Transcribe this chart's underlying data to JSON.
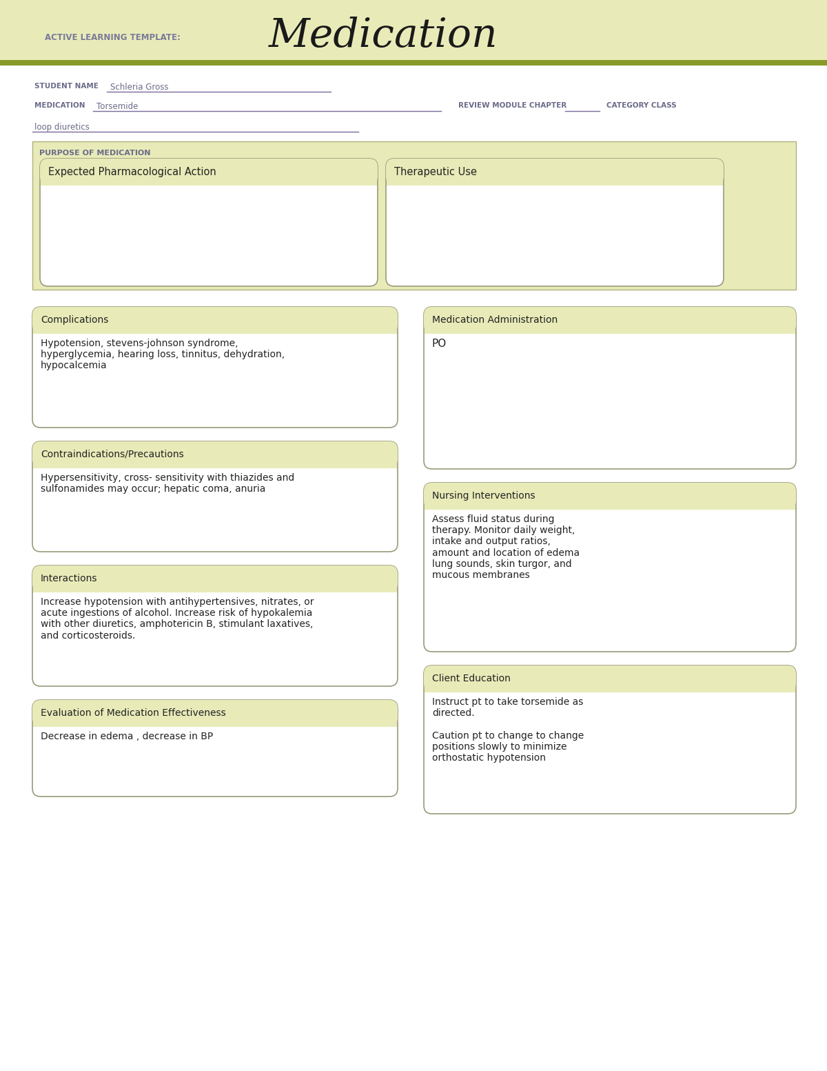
{
  "bg_color": "#ffffff",
  "header_bg": "#e8ebb8",
  "header_stripe_color": "#8a9a2a",
  "header_label": "ACTIVE LEARNING TEMPLATE:",
  "header_title": "Medication",
  "student_name_label": "STUDENT NAME",
  "student_name": "Schleria Gross",
  "medication_label": "MEDICATION",
  "medication": "Torsemide",
  "review_label": "REVIEW MODULE CHAPTER",
  "category_label": "CATEGORY CLASS",
  "category_value": "loop diuretics",
  "purpose_label": "PURPOSE OF MEDICATION",
  "box_bg_olive": "#e8ebb8",
  "box_bg_white": "#ffffff",
  "box_border": "#9a9a7a",
  "label_color": "#6a6a8a",
  "text_color": "#222222",
  "sections": {
    "expected_pharm": {
      "title": "Expected Pharmacological Action",
      "content": ""
    },
    "therapeutic_use": {
      "title": "Therapeutic Use",
      "content": ""
    },
    "complications": {
      "title": "Complications",
      "content": "Hypotension, stevens-johnson syndrome,\nhyperglycemia, hearing loss, tinnitus, dehydration,\nhypocalcemia"
    },
    "med_admin": {
      "title": "Medication Administration",
      "content": "PO"
    },
    "contraindications": {
      "title": "Contraindications/Precautions",
      "content": "Hypersensitivity, cross- sensitivity with thiazides and\nsulfonamides may occur; hepatic coma, anuria"
    },
    "nursing": {
      "title": "Nursing Interventions",
      "content": "Assess fluid status during\ntherapy. Monitor daily weight,\nintake and output ratios,\namount and location of edema\nlung sounds, skin turgor, and\nmucous membranes"
    },
    "interactions": {
      "title": "Interactions",
      "content": "Increase hypotension with antihypertensives, nitrates, or\nacute ingestions of alcohol. Increase risk of hypokalemia\nwith other diuretics, amphotericin B, stimulant laxatives,\nand corticosteroids."
    },
    "client_education": {
      "title": "Client Education",
      "content": "Instruct pt to take torsemide as\ndirected.\n\nCaution pt to change to change\npositions slowly to minimize\northostatic hypotension"
    },
    "evaluation": {
      "title": "Evaluation of Medication Effectiveness",
      "content": "Decrease in edema , decrease in BP"
    }
  }
}
